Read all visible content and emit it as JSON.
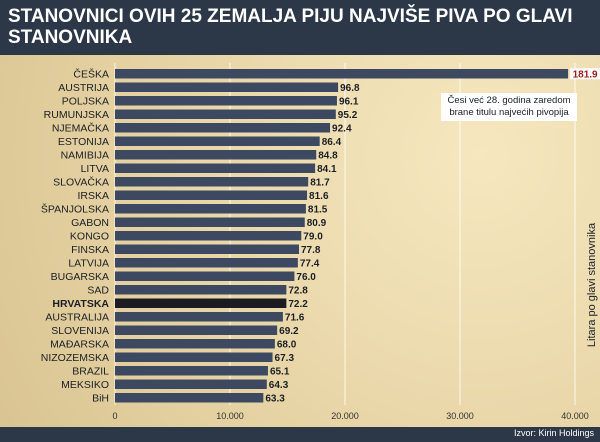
{
  "header": {
    "title": "STANOVNICI OVIH 25 ZEMALJA PIJU NAJVIŠE PIVA PO GLAVI STANOVNIKA"
  },
  "annotation": {
    "text": "Česi već 28. godina zaredom brane titulu najvećih pivopija"
  },
  "footer": {
    "source": "Izvor: Kirin Holdings"
  },
  "colors": {
    "bar": "#3c4960",
    "highlight": "#1b1c22",
    "top_value": "#9b1c1c",
    "header_bg": "#2c3747"
  },
  "chart_data": {
    "type": "bar",
    "orientation": "horizontal",
    "title": "STANOVNICI OVIH 25 ZEMALJA PIJU NAJVIŠE PIVA PO GLAVI STANOVNIKA",
    "ylabel": "Litara po glavi stanovnika",
    "categories": [
      "ČEŠKA",
      "AUSTRIJA",
      "POLJSKA",
      "RUMUNJSKA",
      "NJEMAČKA",
      "ESTONIJA",
      "NAMIBIJA",
      "LITVA",
      "SLOVAČKA",
      "IRSKA",
      "ŠPANJOLSKA",
      "GABON",
      "KONGO",
      "FINSKA",
      "LATVIJA",
      "BUGARSKA",
      "SAD",
      "HRVATSKA",
      "AUSTRALIJA",
      "SLOVENIJA",
      "MAĐARSKA",
      "NIZOZEMSKA",
      "BRAZIL",
      "MEKSIKO",
      "BiH"
    ],
    "value_labels": [
      "181.9",
      "96.8",
      "96.1",
      "95.2",
      "92.4",
      "86.4",
      "84.8",
      "84.1",
      "81.7",
      "81.6",
      "81.5",
      "80.9",
      "79.0",
      "77.8",
      "77.4",
      "76.0",
      "72.8",
      "72.2",
      "71.6",
      "69.2",
      "68.0",
      "67.3",
      "65.1",
      "64.3",
      "63.3"
    ],
    "values": [
      39400,
      19400,
      19300,
      19200,
      18700,
      17800,
      17500,
      17400,
      16800,
      16700,
      16600,
      16500,
      16200,
      16000,
      15900,
      15600,
      14900,
      14900,
      14600,
      14100,
      13900,
      13700,
      13300,
      13200,
      12900
    ],
    "highlight": "HRVATSKA",
    "xlim": [
      0,
      40000
    ],
    "xticks": [
      "0",
      "10.000",
      "20.000",
      "30.000",
      "40.000"
    ],
    "xtick_values": [
      0,
      10000,
      20000,
      30000,
      40000
    ]
  }
}
